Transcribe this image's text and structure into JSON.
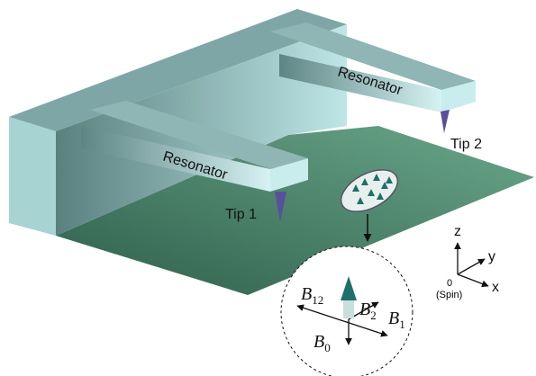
{
  "labels": {
    "resonator_1": "Resonator",
    "resonator_2": "Resonator",
    "tip_1": "Tip 1",
    "tip_2": "Tip 2"
  },
  "fields": [
    {
      "symbol": "B",
      "subscript": "12"
    },
    {
      "symbol": "B",
      "subscript": "2"
    },
    {
      "symbol": "B",
      "subscript": "1"
    },
    {
      "symbol": "B",
      "subscript": "0"
    }
  ],
  "axes": {
    "z": "z",
    "y": "y",
    "x": "x",
    "origin": "0",
    "origin_note": "(Spin)"
  }
}
